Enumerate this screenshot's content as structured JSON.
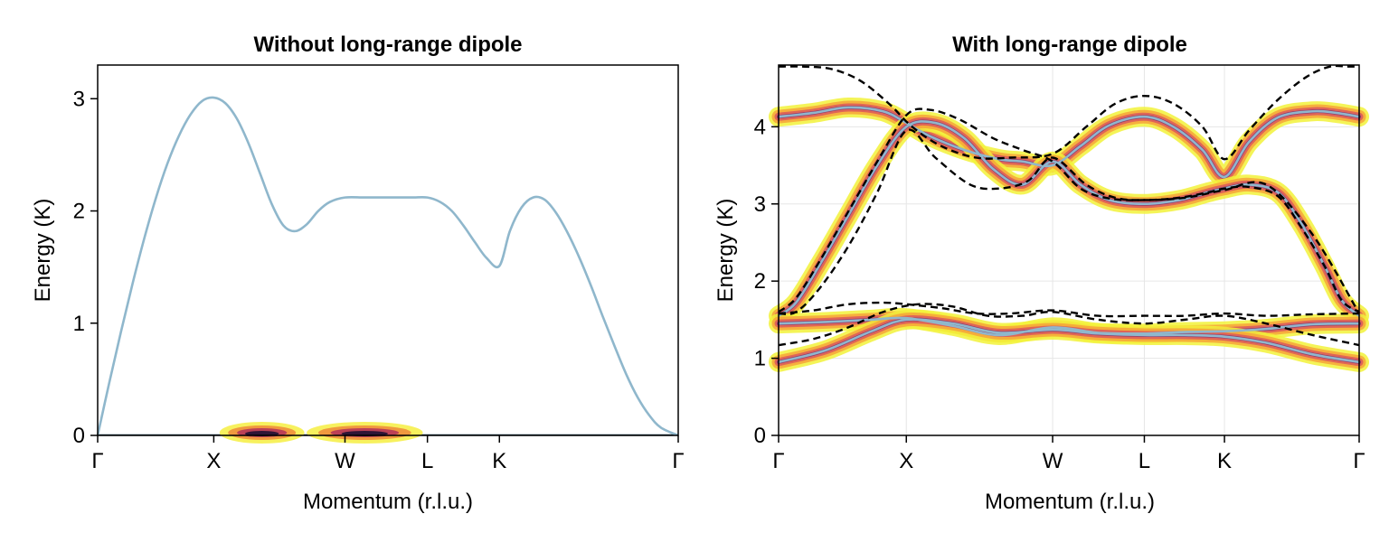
{
  "chart_data": [
    {
      "type": "line",
      "title": "Without long-range dipole",
      "xlabel": "Momentum (r.l.u.)",
      "ylabel": "Energy (K)",
      "x_ticks": [
        "Γ",
        "X",
        "W",
        "L",
        "K",
        "Γ"
      ],
      "x_tick_positions": [
        0,
        1,
        2.13,
        2.84,
        3.46,
        5.0
      ],
      "xlim": [
        0,
        5.0
      ],
      "ylim": [
        0,
        3.3
      ],
      "y_ticks": [
        0,
        1,
        2,
        3
      ],
      "grid": false,
      "legend": "none",
      "series": [
        {
          "x": [
            0,
            0.1,
            0.2,
            0.3,
            0.4,
            0.5,
            0.6,
            0.7,
            0.8,
            0.9,
            1.0,
            1.1,
            1.2,
            1.3,
            1.4,
            1.5,
            1.6,
            1.7,
            1.8,
            1.9,
            2.0,
            2.13,
            2.3,
            2.5,
            2.7,
            2.84,
            2.95,
            3.05,
            3.15,
            3.25,
            3.35,
            3.46,
            3.55,
            3.65,
            3.75,
            3.85,
            3.95,
            4.05,
            4.15,
            4.25,
            4.35,
            4.45,
            4.55,
            4.65,
            4.75,
            4.85,
            5.0
          ],
          "y": [
            0,
            0.47,
            0.92,
            1.35,
            1.75,
            2.11,
            2.42,
            2.67,
            2.86,
            2.98,
            3.01,
            2.96,
            2.82,
            2.6,
            2.33,
            2.06,
            1.87,
            1.82,
            1.88,
            2.0,
            2.08,
            2.12,
            2.12,
            2.12,
            2.12,
            2.12,
            2.08,
            2.0,
            1.87,
            1.72,
            1.58,
            1.51,
            1.82,
            2.03,
            2.12,
            2.1,
            1.98,
            1.8,
            1.58,
            1.33,
            1.06,
            0.8,
            0.55,
            0.34,
            0.18,
            0.07,
            0
          ]
        }
      ]
    },
    {
      "type": "line",
      "title": "With long-range dipole",
      "xlabel": "Momentum (r.l.u.)",
      "ylabel": "Energy (K)",
      "x_ticks": [
        "Γ",
        "X",
        "W",
        "L",
        "K",
        "Γ"
      ],
      "x_tick_positions": [
        0,
        1.1,
        2.36,
        3.15,
        3.84,
        5.0
      ],
      "xlim": [
        0,
        5.0
      ],
      "ylim": [
        0,
        4.8
      ],
      "y_ticks": [
        0,
        1,
        2,
        3,
        4
      ],
      "grid": true,
      "legend": "none",
      "series": [
        {
          "style": "solid",
          "x": [
            0,
            0.3,
            0.6,
            0.9,
            1.1,
            1.3,
            1.6,
            1.9,
            2.1,
            2.36,
            2.6,
            2.85,
            3.15,
            3.4,
            3.65,
            3.84,
            4.05,
            4.3,
            4.6,
            4.8,
            5.0
          ],
          "y": [
            4.13,
            4.18,
            4.25,
            4.2,
            4.05,
            3.88,
            3.7,
            3.58,
            3.55,
            3.5,
            3.75,
            4.02,
            4.13,
            4.0,
            3.7,
            3.35,
            3.8,
            4.12,
            4.2,
            4.18,
            4.13
          ]
        },
        {
          "style": "solid",
          "x": [
            0,
            0.15,
            0.35,
            0.6,
            0.85,
            1.1,
            1.35,
            1.6,
            1.85,
            2.1,
            2.36,
            2.6,
            2.85,
            3.15,
            3.45,
            3.7,
            3.84,
            4.05,
            4.3,
            4.5,
            4.7,
            4.85,
            5.0
          ],
          "y": [
            1.55,
            1.72,
            2.2,
            2.85,
            3.5,
            4.0,
            4.05,
            3.85,
            3.45,
            3.25,
            3.55,
            3.25,
            3.05,
            3.0,
            3.05,
            3.15,
            3.2,
            3.25,
            3.15,
            2.75,
            2.2,
            1.75,
            1.55
          ]
        },
        {
          "style": "solid",
          "x": [
            0,
            0.4,
            0.8,
            1.1,
            1.5,
            1.9,
            2.36,
            2.75,
            3.15,
            3.5,
            3.84,
            4.2,
            4.6,
            5.0
          ],
          "y": [
            1.45,
            1.47,
            1.5,
            1.52,
            1.42,
            1.3,
            1.4,
            1.33,
            1.32,
            1.34,
            1.35,
            1.38,
            1.44,
            1.45
          ]
        },
        {
          "style": "solid",
          "x": [
            0,
            0.4,
            0.8,
            1.1,
            1.5,
            1.9,
            2.36,
            2.75,
            3.15,
            3.5,
            3.84,
            4.2,
            4.6,
            5.0
          ],
          "y": [
            0.95,
            1.1,
            1.35,
            1.5,
            1.45,
            1.33,
            1.37,
            1.32,
            1.3,
            1.3,
            1.28,
            1.2,
            1.05,
            0.95
          ]
        },
        {
          "style": "dashed",
          "x": [
            0,
            0.2,
            0.45,
            0.7,
            0.95,
            1.15,
            1.4,
            1.7,
            2.0,
            2.36,
            2.65,
            2.9,
            3.15,
            3.4,
            3.65,
            3.84,
            4.05,
            4.3,
            4.55,
            4.75,
            4.9,
            5.0
          ],
          "y": [
            4.78,
            4.78,
            4.75,
            4.6,
            4.3,
            4.0,
            3.75,
            3.6,
            3.6,
            3.65,
            4.0,
            4.3,
            4.4,
            4.3,
            4.0,
            3.58,
            3.95,
            4.35,
            4.65,
            4.78,
            4.78,
            4.78
          ]
        },
        {
          "style": "dashed",
          "x": [
            0,
            0.15,
            0.35,
            0.6,
            0.85,
            1.1,
            1.3,
            1.55,
            1.85,
            2.1,
            2.36,
            2.6,
            2.85,
            3.15,
            3.45,
            3.7,
            3.84,
            4.05,
            4.3,
            4.5,
            4.7,
            4.85,
            5.0
          ],
          "y": [
            1.6,
            1.78,
            2.25,
            2.9,
            3.55,
            4.15,
            4.22,
            4.1,
            3.85,
            3.7,
            3.55,
            3.2,
            3.07,
            3.05,
            3.08,
            3.15,
            3.2,
            3.22,
            3.1,
            2.7,
            2.2,
            1.75,
            1.6
          ]
        },
        {
          "style": "dashed",
          "x": [
            0,
            0.15,
            0.35,
            0.6,
            0.85,
            1.1,
            1.35,
            1.65,
            1.9,
            2.15,
            2.36,
            2.65,
            2.9,
            3.15,
            3.5,
            3.84,
            4.2,
            4.6,
            5.0
          ],
          "y": [
            1.58,
            1.6,
            1.9,
            2.45,
            3.15,
            3.95,
            3.6,
            3.25,
            3.2,
            3.3,
            3.6,
            3.25,
            3.08,
            3.05,
            3.08,
            3.18,
            3.25,
            2.6,
            1.58
          ]
        },
        {
          "style": "dashed",
          "x": [
            0,
            0.3,
            0.6,
            0.9,
            1.1,
            1.4,
            1.7,
            2.0,
            2.36,
            2.75,
            3.15,
            3.5,
            3.84,
            4.2,
            4.6,
            5.0
          ],
          "y": [
            1.58,
            1.62,
            1.7,
            1.72,
            1.7,
            1.65,
            1.58,
            1.58,
            1.62,
            1.55,
            1.55,
            1.55,
            1.58,
            1.55,
            1.57,
            1.58
          ]
        },
        {
          "style": "dashed",
          "x": [
            0,
            0.3,
            0.6,
            0.9,
            1.2,
            1.5,
            1.8,
            2.1,
            2.36,
            2.75,
            3.15,
            3.5,
            3.84,
            4.2,
            4.6,
            5.0
          ],
          "y": [
            1.17,
            1.25,
            1.4,
            1.6,
            1.7,
            1.67,
            1.55,
            1.55,
            1.6,
            1.5,
            1.45,
            1.5,
            1.55,
            1.45,
            1.3,
            1.17
          ]
        }
      ]
    }
  ]
}
